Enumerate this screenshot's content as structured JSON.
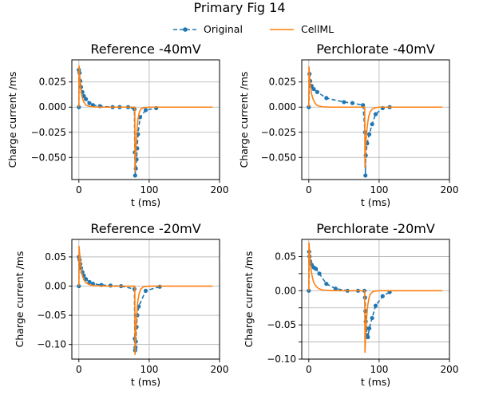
{
  "figure_title": "Primary Fig 14",
  "legend": [
    {
      "label": "Original",
      "color": "#1f77b4",
      "style": "dashed-marker"
    },
    {
      "label": "CellML",
      "color": "#ff7f0e",
      "style": "solid"
    }
  ],
  "chart_data": [
    {
      "type": "line",
      "title": "Reference -40mV",
      "xlabel": "t (ms)",
      "ylabel": "Charge current /ms",
      "xlim": [
        -10,
        200
      ],
      "ylim": [
        -0.072,
        0.047
      ],
      "xticks": [
        0,
        100,
        200
      ],
      "yticks": [
        0.025,
        0.0,
        -0.025,
        -0.05
      ],
      "ytick_labels": [
        "0.025",
        "0.000",
        "−0.025",
        "−0.050"
      ],
      "grid": true,
      "series": [
        {
          "name": "Original",
          "x": [
            0,
            0,
            1,
            2,
            3,
            5,
            7,
            10,
            15,
            20,
            30,
            48,
            58,
            70,
            79,
            79.5,
            80,
            81,
            82,
            83,
            84,
            87,
            95,
            110
          ],
          "y": [
            0.0,
            0.037,
            0.034,
            0.026,
            0.02,
            0.015,
            0.011,
            0.008,
            0.004,
            0.002,
            0.001,
            0.0,
            0.0,
            0.0,
            -0.002,
            -0.045,
            -0.068,
            -0.061,
            -0.052,
            -0.041,
            -0.027,
            -0.01,
            -0.003,
            -0.001
          ]
        },
        {
          "name": "CellML",
          "x": [
            0,
            0.3,
            0.8,
            1.5,
            2.5,
            3.5,
            5,
            7,
            10,
            14,
            20,
            30,
            45,
            60,
            79.5,
            79.9,
            80.3,
            81,
            82,
            83,
            84,
            86,
            88,
            92,
            100,
            130,
            190
          ],
          "y": [
            0.0,
            0.041,
            0.036,
            0.028,
            0.02,
            0.014,
            0.009,
            0.005,
            0.002,
            0.001,
            0.0003,
            0.0,
            0.0,
            0.0,
            0.0,
            -0.064,
            -0.055,
            -0.043,
            -0.03,
            -0.02,
            -0.012,
            -0.005,
            -0.002,
            -0.0005,
            0.0,
            0.0,
            0.0
          ]
        }
      ]
    },
    {
      "type": "line",
      "title": "Perchlorate -40mV",
      "xlabel": "t (ms)",
      "ylabel": "Charge current /ms",
      "xlim": [
        -10,
        200
      ],
      "ylim": [
        -0.072,
        0.047
      ],
      "xticks": [
        0,
        100,
        200
      ],
      "yticks": [
        0.025,
        0.0,
        -0.025,
        -0.05
      ],
      "ytick_labels": [
        "0.025",
        "0.000",
        "−0.025",
        "−0.050"
      ],
      "grid": true,
      "series": [
        {
          "name": "Original",
          "x": [
            0,
            1,
            2,
            4,
            7,
            12,
            25,
            50,
            62,
            77,
            80,
            80.5,
            81,
            83,
            86,
            90,
            95,
            105,
            115
          ],
          "y": [
            0.0,
            0.033,
            0.026,
            0.021,
            0.018,
            0.015,
            0.009,
            0.005,
            0.004,
            0.002,
            -0.025,
            -0.068,
            -0.048,
            -0.036,
            -0.027,
            -0.017,
            -0.007,
            -0.001,
            0.0
          ]
        },
        {
          "name": "CellML",
          "x": [
            0,
            0.3,
            0.8,
            1.5,
            2.5,
            4,
            6,
            8,
            11,
            15,
            20,
            30,
            50,
            79.5,
            79.9,
            80.3,
            81,
            82,
            83.5,
            85,
            87,
            90,
            95,
            100,
            130,
            190
          ],
          "y": [
            0.0,
            0.04,
            0.034,
            0.027,
            0.02,
            0.013,
            0.008,
            0.005,
            0.002,
            0.001,
            0.0003,
            0.0,
            0.0,
            0.0,
            -0.06,
            -0.05,
            -0.038,
            -0.027,
            -0.017,
            -0.01,
            -0.005,
            -0.002,
            -0.0005,
            0.0,
            0.0,
            0.0
          ]
        }
      ]
    },
    {
      "type": "line",
      "title": "Reference -20mV",
      "xlabel": "t (ms)",
      "ylabel": "Charge current /ms",
      "xlim": [
        -10,
        200
      ],
      "ylim": [
        -0.125,
        0.08
      ],
      "xticks": [
        0,
        100,
        200
      ],
      "yticks": [
        0.05,
        0.0,
        -0.05,
        -0.1
      ],
      "ytick_labels": [
        "0.05",
        "0.00",
        "−0.05",
        "−0.10"
      ],
      "grid": true,
      "series": [
        {
          "name": "Original",
          "x": [
            0,
            0,
            1,
            2,
            3,
            5,
            7,
            10,
            15,
            20,
            32,
            45,
            60,
            79,
            79.5,
            80,
            80.5,
            81,
            82,
            83,
            85,
            95,
            115
          ],
          "y": [
            0.0,
            0.05,
            0.045,
            0.038,
            0.031,
            0.024,
            0.018,
            0.012,
            0.007,
            0.004,
            0.002,
            0.001,
            0.0,
            -0.005,
            -0.09,
            -0.11,
            -0.105,
            -0.095,
            -0.07,
            -0.05,
            -0.035,
            -0.008,
            -0.001
          ]
        },
        {
          "name": "CellML",
          "x": [
            0,
            0.3,
            0.8,
            1.5,
            2.5,
            3.5,
            5,
            7,
            10,
            14,
            20,
            30,
            45,
            60,
            79.5,
            79.9,
            80.3,
            81,
            82,
            83,
            84,
            86,
            88,
            92,
            100,
            130,
            190
          ],
          "y": [
            0.0,
            0.068,
            0.06,
            0.048,
            0.036,
            0.027,
            0.018,
            0.011,
            0.006,
            0.003,
            0.001,
            0.0003,
            0.0,
            0.0,
            0.0,
            -0.117,
            -0.1,
            -0.078,
            -0.055,
            -0.037,
            -0.024,
            -0.011,
            -0.005,
            -0.001,
            0.0,
            0.0,
            0.0
          ]
        }
      ]
    },
    {
      "type": "line",
      "title": "Perchlorate -20mV",
      "xlabel": "t (ms)",
      "ylabel": "Charge current /ms",
      "xlim": [
        -10,
        200
      ],
      "ylim": [
        -0.1,
        0.075
      ],
      "xticks": [
        0,
        100,
        200
      ],
      "yticks": [
        0.05,
        0.025,
        0.0,
        -0.025,
        -0.05,
        -0.075,
        -0.1
      ],
      "ytick_labels": [
        "0.05",
        "",
        "0.00",
        "",
        "−0.05",
        "",
        "−0.10"
      ],
      "grid": true,
      "series": [
        {
          "name": "Original",
          "x": [
            0,
            0.5,
            1,
            2,
            4,
            7,
            10,
            15,
            25,
            38,
            55,
            70,
            79,
            80,
            80.5,
            81,
            82,
            83,
            84,
            86,
            90,
            95,
            105,
            115
          ],
          "y": [
            0.0,
            0.057,
            0.05,
            0.043,
            0.038,
            0.034,
            0.032,
            0.025,
            0.01,
            0.003,
            0.0,
            0.0,
            0.0,
            -0.01,
            -0.03,
            -0.045,
            -0.055,
            -0.065,
            -0.068,
            -0.055,
            -0.04,
            -0.022,
            -0.008,
            -0.002
          ]
        },
        {
          "name": "CellML",
          "x": [
            0,
            0.3,
            0.8,
            1.5,
            2.5,
            3.5,
            5,
            7,
            10,
            14,
            20,
            30,
            45,
            60,
            79.5,
            79.9,
            80.3,
            81,
            82,
            83,
            84,
            86,
            88,
            92,
            100,
            130,
            190
          ],
          "y": [
            0.0,
            0.07,
            0.062,
            0.05,
            0.038,
            0.029,
            0.02,
            0.012,
            0.007,
            0.003,
            0.001,
            0.0003,
            0.0,
            0.0,
            0.0,
            -0.09,
            -0.078,
            -0.06,
            -0.043,
            -0.03,
            -0.02,
            -0.009,
            -0.004,
            -0.001,
            0.0,
            0.0,
            0.0
          ]
        }
      ]
    }
  ]
}
